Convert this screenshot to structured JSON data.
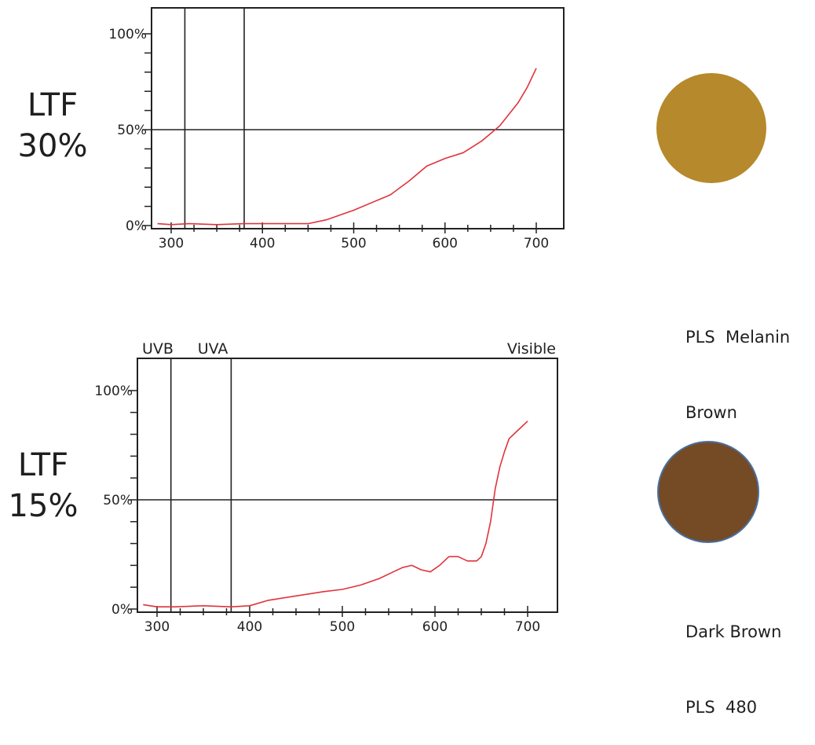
{
  "chart_data": [
    {
      "type": "line",
      "title": "",
      "side_label": [
        "LTF",
        "30%"
      ],
      "xlabel": "",
      "ylabel": "",
      "xlim": [
        280,
        730
      ],
      "ylim": [
        0,
        100
      ],
      "x_ticks": [
        300,
        400,
        500,
        600,
        700
      ],
      "y_ticks": [
        {
          "value": 0,
          "label": "0%"
        },
        {
          "value": 50,
          "label": "50%"
        },
        {
          "value": 100,
          "label": "100%"
        }
      ],
      "vertical_lines": [
        315,
        380
      ],
      "horizontal_lines": [
        50
      ],
      "region_labels": [],
      "grid": false,
      "series": [
        {
          "color": "#e0333a",
          "x": [
            285,
            300,
            320,
            350,
            380,
            420,
            450,
            470,
            500,
            520,
            540,
            560,
            570,
            580,
            600,
            620,
            640,
            650,
            660,
            670,
            680,
            690,
            700
          ],
          "y": [
            1,
            0.5,
            1,
            0.5,
            1,
            1,
            1,
            3,
            8,
            12,
            16,
            23,
            27,
            31,
            35,
            38,
            44,
            48,
            52,
            58,
            64,
            72,
            82
          ]
        }
      ]
    },
    {
      "type": "line",
      "title": "",
      "side_label": [
        "LTF",
        "15%"
      ],
      "xlabel": "",
      "ylabel": "",
      "xlim": [
        280,
        730
      ],
      "ylim": [
        0,
        100
      ],
      "x_ticks": [
        300,
        400,
        500,
        600,
        700
      ],
      "y_ticks": [
        {
          "value": 0,
          "label": "0%"
        },
        {
          "value": 50,
          "label": "50%"
        },
        {
          "value": 100,
          "label": "100%"
        }
      ],
      "vertical_lines": [
        315,
        380
      ],
      "horizontal_lines": [
        50
      ],
      "region_labels": [
        "UVB",
        "UVA",
        "Visible"
      ],
      "grid": false,
      "series": [
        {
          "color": "#e0333a",
          "x": [
            285,
            300,
            320,
            350,
            380,
            400,
            420,
            450,
            480,
            500,
            520,
            540,
            555,
            565,
            575,
            585,
            595,
            605,
            615,
            625,
            635,
            645,
            650,
            655,
            660,
            665,
            670,
            675,
            680,
            690,
            700
          ],
          "y": [
            2,
            1,
            1,
            1.5,
            1,
            1.5,
            4,
            6,
            8,
            9,
            11,
            14,
            17,
            19,
            20,
            18,
            17,
            20,
            24,
            24,
            22,
            22,
            24,
            30,
            40,
            55,
            65,
            72,
            78,
            82,
            86
          ]
        }
      ]
    }
  ],
  "swatches": [
    {
      "color": "#b5892c",
      "caption_line1": "PLS  Melanin",
      "caption_line2": "Brown"
    },
    {
      "color": "#744b25",
      "caption_line1": "Dark Brown",
      "caption_line2": "PLS  480"
    }
  ]
}
